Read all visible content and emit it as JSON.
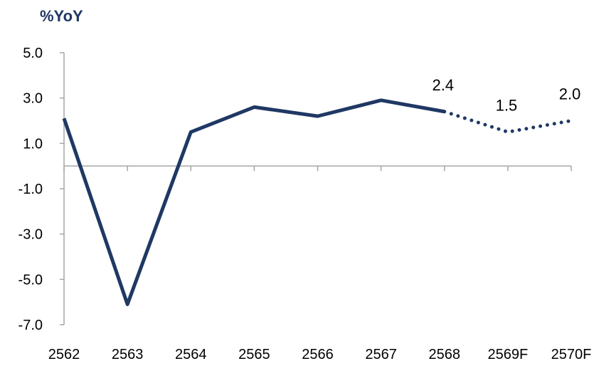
{
  "chart_data": {
    "type": "line",
    "unit_label": "%YoY",
    "categories": [
      "2562",
      "2563",
      "2564",
      "2565",
      "2566",
      "2567",
      "2568",
      "2569F",
      "2570F"
    ],
    "values": [
      2.1,
      -6.1,
      1.5,
      2.6,
      2.2,
      2.9,
      2.4,
      1.5,
      2.0
    ],
    "forecast_start_index": 6,
    "data_labels": [
      {
        "index": 6,
        "text": "2.4"
      },
      {
        "index": 7,
        "text": "1.5"
      },
      {
        "index": 8,
        "text": "2.0"
      }
    ],
    "y_ticks": [
      "5.0",
      "3.0",
      "1.0",
      "-1.0",
      "-3.0",
      "-5.0",
      "-7.0"
    ],
    "ylim": [
      -7,
      5
    ],
    "grid": false,
    "legend": "none",
    "colors": {
      "line": "#1f3864",
      "axis": "#a6a6a6",
      "text": "#000000"
    }
  }
}
